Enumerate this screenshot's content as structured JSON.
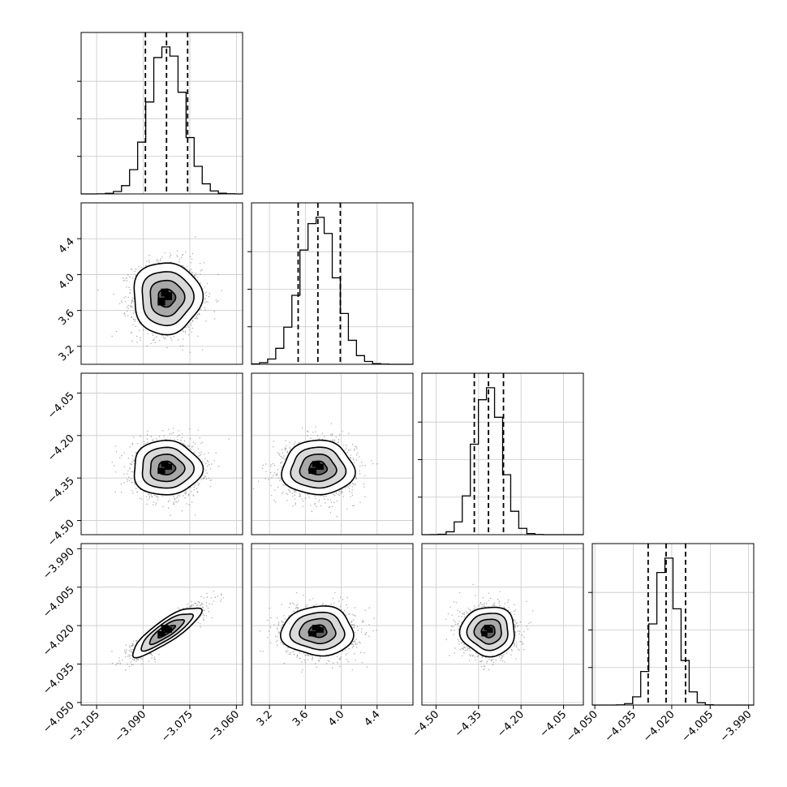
{
  "chart_data": {
    "type": "scatter",
    "kind": "corner-plot",
    "grid": true,
    "parameters": [
      {
        "range": [
          -3.11,
          -3.058
        ],
        "ticks": [
          -3.105,
          -3.09,
          -3.075,
          -3.06
        ],
        "tick_labels": [
          "−3.105",
          "−3.090",
          "−3.075",
          "−3.060"
        ],
        "mean": -3.0825,
        "sd": 0.0055,
        "quantiles": [
          -3.0893,
          -3.0825,
          -3.0757
        ]
      },
      {
        "range": [
          3.0,
          4.8
        ],
        "ticks": [
          3.2,
          3.6,
          4.0,
          4.4
        ],
        "tick_labels": [
          "3.2",
          "3.6",
          "4.0",
          "4.4"
        ],
        "mean": 3.74,
        "sd": 0.2,
        "quantiles": [
          3.52,
          3.74,
          3.99
        ]
      },
      {
        "range": [
          -4.55,
          -3.98
        ],
        "ticks": [
          -4.5,
          -4.35,
          -4.2,
          -4.05
        ],
        "tick_labels": [
          "−4.50",
          "−4.35",
          "−4.20",
          "−4.05"
        ],
        "mean": -4.315,
        "sd": 0.048,
        "quantiles": [
          -4.365,
          -4.315,
          -4.262
        ]
      },
      {
        "range": [
          -4.051,
          -3.988
        ],
        "ticks": [
          -4.05,
          -4.035,
          -4.02,
          -4.005,
          -3.99
        ],
        "tick_labels": [
          "−4.050",
          "−4.035",
          "−4.020",
          "−4.005",
          "−3.990"
        ],
        "mean": -4.0222,
        "sd": 0.0048,
        "quantiles": [
          -4.0292,
          -4.0222,
          -4.0146
        ]
      }
    ],
    "correlations": [
      [
        1,
        0,
        0,
        0.85
      ],
      [
        0,
        1,
        0,
        0
      ],
      [
        0,
        0,
        1,
        0
      ],
      [
        0.85,
        0,
        0,
        1
      ]
    ],
    "contour_levels_sigma": [
      0.5,
      1.0,
      1.5,
      2.0
    ]
  }
}
